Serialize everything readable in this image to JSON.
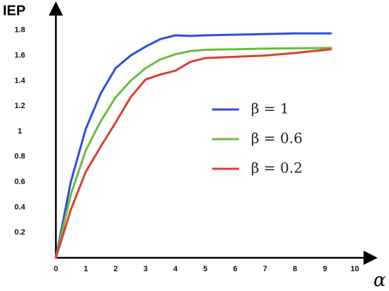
{
  "chart_data": {
    "type": "line",
    "y_label": "IEP",
    "x_label": "α",
    "x": [
      0,
      0.5,
      1,
      1.5,
      2,
      2.5,
      3,
      3.5,
      4,
      4.5,
      5,
      6,
      7,
      8,
      9.2
    ],
    "series": [
      {
        "name": "β = 1",
        "color": "#2f4de0",
        "values": [
          0,
          0.6,
          1.02,
          1.3,
          1.5,
          1.6,
          1.67,
          1.73,
          1.76,
          1.755,
          1.76,
          1.765,
          1.77,
          1.775,
          1.775
        ]
      },
      {
        "name": "β = 0.6",
        "color": "#6cbb3c",
        "values": [
          0,
          0.5,
          0.85,
          1.08,
          1.27,
          1.4,
          1.5,
          1.57,
          1.61,
          1.635,
          1.645,
          1.65,
          1.655,
          1.657,
          1.66
        ]
      },
      {
        "name": "β = 0.2",
        "color": "#d9412f",
        "values": [
          0,
          0.38,
          0.68,
          0.88,
          1.07,
          1.27,
          1.41,
          1.45,
          1.48,
          1.55,
          1.58,
          1.59,
          1.6,
          1.62,
          1.65
        ]
      }
    ],
    "xlim": [
      0,
      10.6
    ],
    "ylim": [
      0,
      2
    ],
    "xticks": [
      0,
      1,
      2,
      3,
      4,
      5,
      6,
      7,
      8,
      9,
      10
    ],
    "yticks": [
      0.2,
      0.4,
      0.6,
      0.8,
      1,
      1.2,
      1.4,
      1.6,
      1.8
    ],
    "grid": false
  }
}
